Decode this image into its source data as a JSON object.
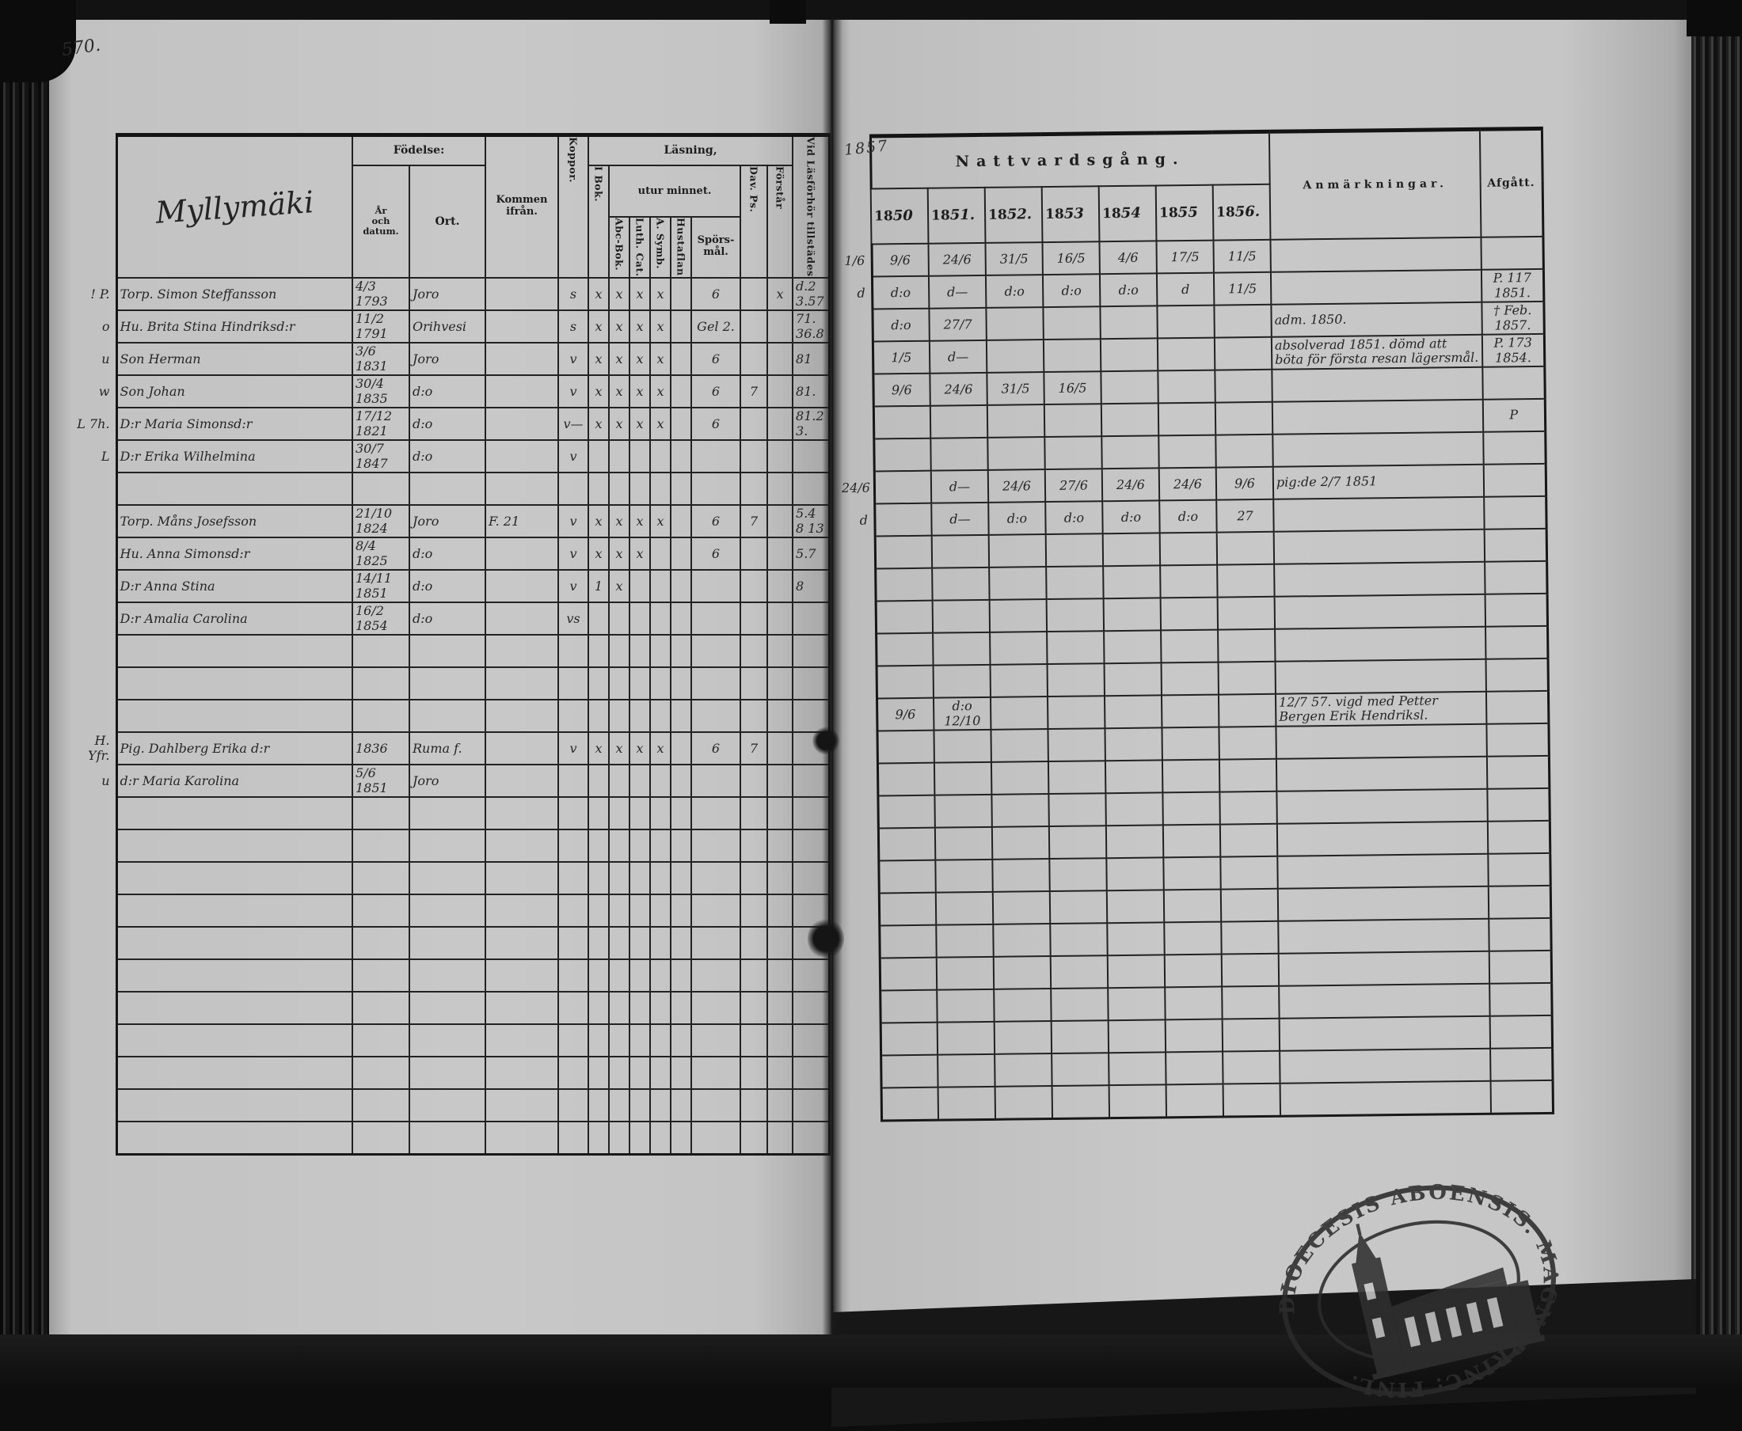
{
  "page": {
    "number": "570.",
    "fold_year": "1857"
  },
  "colors": {
    "paper": "#c8c8c8",
    "ink": "#262626",
    "line": "#222222",
    "cover": "#141414"
  },
  "left_table": {
    "title_script": "Myllymäki",
    "headers": {
      "fodelse": "Födelse:",
      "ar": "År\noch\ndatum.",
      "ort": "Ort.",
      "kommen": "Kommen\nifrån.",
      "koppor": "Koppor.",
      "lasning": "Läsning,",
      "utur": "utur minnet.",
      "ibok": "I Bok.",
      "abc": "Abc-Bok.",
      "luth": "Luth. Cat.",
      "symb": "A. Symb.",
      "hust": "Hustaflan",
      "spors": "Spörs-\nmål.",
      "dav": "Dav. Ps.",
      "forstar": "Förstår",
      "vid": "Vid Läsförhör tillstädes"
    },
    "col_keys": [
      "m",
      "name",
      "date",
      "ort",
      "kom",
      "kop",
      "c1",
      "c2",
      "c3",
      "c4",
      "c5",
      "sp",
      "dav",
      "f",
      "vid"
    ],
    "rows": [
      {
        "m": "! P.",
        "name": "Torp. Simon Steffansson",
        "date": "4/3 1793",
        "ort": "Joro",
        "kop": "s",
        "c1": "x",
        "c2": "x",
        "c3": "x",
        "c4": "x",
        "sp": "6",
        "f": "x",
        "vid": "d.2  3.57"
      },
      {
        "m": "o",
        "name": "Hu. Brita Stina Hindriksd:r",
        "date": "11/2 1791",
        "ort": "Orihvesi",
        "kop": "s",
        "c1": "x",
        "c2": "x",
        "c3": "x",
        "c4": "x",
        "sp": "Gel 2.",
        "vid": "71. 36.8"
      },
      {
        "m": "u",
        "name": "Son Herman",
        "date": "3/6 1831",
        "ort": "Joro",
        "kop": "v",
        "c1": "x",
        "c2": "x",
        "c3": "x",
        "c4": "x",
        "sp": "6",
        "vid": "81"
      },
      {
        "m": "w",
        "name": "Son Johan",
        "date": "30/4 1835",
        "ort": "d:o",
        "kop": "v",
        "c1": "x",
        "c2": "x",
        "c3": "x",
        "c4": "x",
        "sp": "6",
        "dav": "7",
        "vid": "81."
      },
      {
        "m": "L 7h.",
        "name": "D:r Maria Simonsd:r",
        "date": "17/12 1821",
        "ort": "d:o",
        "kop": "v—",
        "c1": "x",
        "c2": "x",
        "c3": "x",
        "c4": "x",
        "sp": "6",
        "vid": "81.2\n3."
      },
      {
        "m": "L",
        "name": "D:r Erika Wilhelmina",
        "date": "30/7 1847",
        "ort": "d:o",
        "kop": "v"
      },
      {},
      {
        "name": "Torp. Måns Josefsson",
        "date": "21/10 1824",
        "ort": "Joro",
        "kom": "F. 21",
        "kop": "v",
        "c1": "x",
        "c2": "x",
        "c3": "x",
        "c4": "x",
        "sp": "6",
        "dav": "7",
        "vid": "5.4 8 13"
      },
      {
        "name": "Hu. Anna Simonsd:r",
        "date": "8/4 1825",
        "ort": "d:o",
        "kop": "v",
        "c1": "x",
        "c2": "x",
        "c3": "x",
        "sp": "6",
        "vid": "5.7"
      },
      {
        "name": "D:r Anna Stina",
        "date": "14/11 1851",
        "ort": "d:o",
        "kop": "v",
        "c1": "1",
        "c2": "x",
        "vid": "8"
      },
      {
        "name": "D:r Amalia Carolina",
        "date": "16/2 1854",
        "ort": "d:o",
        "kop": "vs"
      },
      {},
      {},
      {},
      {
        "m": "H. Yfr.",
        "name": "Pig. Dahlberg Erika d:r",
        "date": "1836",
        "ort": "Ruma f.",
        "kop": "v",
        "c1": "x",
        "c2": "x",
        "c3": "x",
        "c4": "x",
        "sp": "6",
        "dav": "7"
      },
      {
        "m": "u",
        "name": "d:r Maria Karolina",
        "date": "5/6 1851",
        "ort": "Joro"
      },
      {},
      {},
      {},
      {},
      {},
      {},
      {},
      {},
      {},
      {},
      {}
    ]
  },
  "right_table": {
    "headers": {
      "nattvard": "Nattvardsgång.",
      "anm": "Anmärkningar.",
      "afg": "Afgått."
    },
    "years": [
      {
        "print": "18",
        "script": "50"
      },
      {
        "print": "18",
        "script": "51."
      },
      {
        "print": "18",
        "script": "52."
      },
      {
        "print": "18",
        "script": "53"
      },
      {
        "print": "18",
        "script": "54"
      },
      {
        "print": "18",
        "script": "55"
      },
      {
        "print": "18",
        "script": "56."
      }
    ],
    "col_keys": [
      "m",
      "y0",
      "y1",
      "y2",
      "y3",
      "y4",
      "y5",
      "y6",
      "anm",
      "afg"
    ],
    "rows": [
      {
        "m": "1/6",
        "y0": "9/6",
        "y1": "24/6",
        "y2": "31/5",
        "y3": "16/5",
        "y4": "4/6",
        "y5": "17/5",
        "y6": "11/5"
      },
      {
        "m": "d",
        "y0": "d:o",
        "y1": "d—",
        "y2": "d:o",
        "y3": "d:o",
        "y4": "d:o",
        "y5": "d",
        "y6": "11/5",
        "afg": "P. 117\n1851."
      },
      {
        "y0": "d:o",
        "y1": "27/7",
        "anm": "adm. 1850.",
        "afg": "† Feb.\n1857."
      },
      {
        "y0": "1/5",
        "y1": "d—",
        "anm": "absolverad 1851. dömd att böta för första resan lägersmål.",
        "afg": "P. 173\n1854."
      },
      {
        "y0": "9/6",
        "y1": "24/6",
        "y2": "31/5",
        "y3": "16/5"
      },
      {
        "afg": "P"
      },
      {},
      {
        "m": "24/6",
        "y1": "d—",
        "y2": "24/6",
        "y3": "27/6",
        "y4": "24/6",
        "y5": "24/6",
        "y6": "9/6",
        "anm": "pig:de 2/7 1851"
      },
      {
        "m": "d",
        "y1": "d—",
        "y2": "d:o",
        "y3": "d:o",
        "y4": "d:o",
        "y5": "d:o",
        "y6": "27"
      },
      {},
      {},
      {},
      {},
      {},
      {
        "y0": "9/6",
        "y1": "d:o 12/10",
        "anm": "12/7 57. vigd med Petter Bergen Erik Hendriksl."
      },
      {},
      {},
      {},
      {},
      {},
      {},
      {},
      {},
      {},
      {},
      {},
      {}
    ]
  },
  "stamp": {
    "ring_text": "DIOECESIS ABOENSIS. MAGN: PRINC: FINL."
  }
}
